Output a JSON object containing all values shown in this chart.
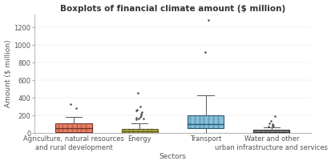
{
  "title": "Boxplots of financial climate amount ($ million)",
  "xlabel": "Sectors",
  "ylabel": "Amount ($ million)",
  "categories": [
    "Agriculture, natural resources\nand rural development",
    "Energy",
    "Transport",
    "Water and other\nurban infrastructure and services"
  ],
  "box_stats": [
    {
      "med": 55,
      "q1": 15,
      "q3": 110,
      "whislo": 0,
      "whishi": 185,
      "fliers": [
        330,
        290
      ],
      "color": "#E8836A",
      "edge_color": "#7A3020"
    },
    {
      "med": 20,
      "q1": 8,
      "q3": 48,
      "whislo": 0,
      "whishi": 110,
      "fliers": [
        460,
        300,
        270,
        255,
        240,
        220,
        205,
        190,
        180,
        172,
        165,
        158
      ],
      "color": "#B8B050",
      "edge_color": "#5A5820"
    },
    {
      "med": 105,
      "q1": 58,
      "q3": 205,
      "whislo": 0,
      "whishi": 430,
      "fliers": [
        920,
        1280
      ],
      "color": "#88C0D8",
      "edge_color": "#2A5A78"
    },
    {
      "med": 18,
      "q1": 5,
      "q3": 38,
      "whislo": 0,
      "whishi": 65,
      "fliers": [
        195,
        140,
        115,
        100,
        90,
        85,
        80
      ],
      "color": "#888888",
      "edge_color": "#333333"
    }
  ],
  "ylim": [
    0,
    1350
  ],
  "yticks": [
    0,
    200,
    400,
    600,
    800,
    1000,
    1200
  ],
  "background_color": "#FFFFFF",
  "title_fontsize": 7.5,
  "label_fontsize": 6.5,
  "tick_fontsize": 6.0,
  "box_width": 0.55
}
